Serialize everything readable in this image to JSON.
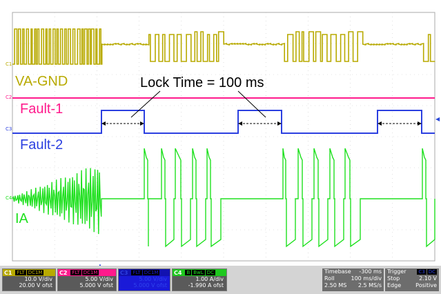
{
  "labels": {
    "va_gnd": "VA-GND",
    "fault1": "Fault-1",
    "fault2": "Fault-2",
    "ia": "IA",
    "lock_time": "Lock Time = 100 ms"
  },
  "markers": {
    "c1": "C1",
    "c2": "C2",
    "c3": "C3",
    "c4": "C4"
  },
  "colors": {
    "c1": "#b8aa00",
    "c2": "#ff1a8c",
    "c3": "#2b3fe0",
    "c4": "#1ee01e",
    "grid": "#c8c8c8",
    "panel_bg": "#d4d4d4"
  },
  "channels": [
    {
      "name": "C1",
      "badge1": "FLT",
      "badge2": "DC1M",
      "scale": "10.0 V/div",
      "offset": "20.00 V ofst"
    },
    {
      "name": "C2",
      "badge1": "FLT",
      "badge2": "DC1M",
      "scale": "5.00 V/div",
      "offset": "5.000 V ofst"
    },
    {
      "name": "C3",
      "badge1": "FLT",
      "badge2": "DC1M",
      "scale": "5.00 V/div",
      "offset": "5.000 V ofst"
    },
    {
      "name": "C4",
      "badge1": "B",
      "badge2": "BwL",
      "badge3": "DC",
      "scale": "1.00 A/div",
      "offset": "-1.990 A ofst"
    }
  ],
  "timebase": {
    "label": "Timebase",
    "value": "-300 ms",
    "mode": "Roll",
    "per_div": "100 ms/div",
    "samples": "2.50 MS",
    "rate": "2.5 MS/s"
  },
  "trigger": {
    "label": "Trigger",
    "channel": "C3",
    "coupling": "DC",
    "mode": "Stop",
    "level": "2.10 V",
    "type": "Edge",
    "slope": "Positive"
  },
  "icons": {
    "trigger_marker": "trigger-position-icon",
    "trigger_level": "trigger-level-icon"
  }
}
